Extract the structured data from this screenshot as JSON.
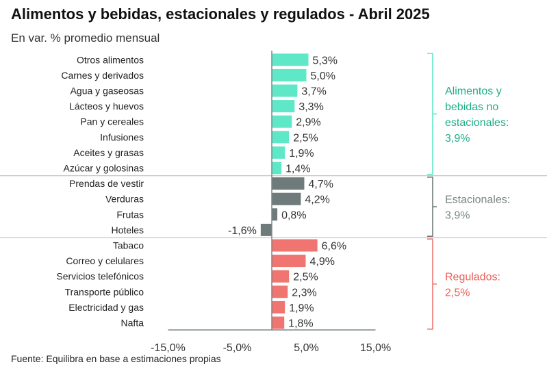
{
  "header": {
    "title": "Alimentos y bebidas, estacionales y regulados - Abril 2025",
    "subtitle": "En var. % promedio mensual"
  },
  "footer": {
    "source": "Fuente: Equilibra en base a estimaciones propias"
  },
  "chart_data": {
    "type": "bar",
    "orientation": "horizontal",
    "title": "Alimentos y bebidas, estacionales y regulados - Abril 2025",
    "subtitle": "En var. % promedio mensual",
    "xlim": [
      -15,
      15
    ],
    "x_ticks": [
      -15,
      -5,
      5,
      15
    ],
    "x_tick_labels": [
      "-15,0%",
      "-5,0%",
      "5,0%",
      "15,0%"
    ],
    "grid": false,
    "categories": [
      "Otros alimentos",
      "Carnes y derivados",
      "Agua y gaseosas",
      "Lácteos y huevos",
      "Pan y cereales",
      "Infusiones",
      "Aceites y grasas",
      "Azúcar y golosinas",
      "Prendas de vestir",
      "Verduras",
      "Frutas",
      "Hoteles",
      "Tabaco",
      "Correo y celulares",
      "Servicios telefónicos",
      "Transporte público",
      "Electricidad y gas",
      "Nafta"
    ],
    "values": [
      5.3,
      5.0,
      3.7,
      3.3,
      2.9,
      2.5,
      1.9,
      1.4,
      4.7,
      4.2,
      0.8,
      -1.6,
      6.6,
      4.9,
      2.5,
      2.3,
      1.9,
      1.8
    ],
    "value_labels": [
      "5,3%",
      "5,0%",
      "3,7%",
      "3,3%",
      "2,9%",
      "2,5%",
      "1,9%",
      "1,4%",
      "4,7%",
      "4,2%",
      "0,8%",
      "-1,6%",
      "6,6%",
      "4,9%",
      "2,5%",
      "2,3%",
      "1,9%",
      "1,8%"
    ],
    "groups": [
      {
        "label_lines": [
          "Alimentos y",
          "bebidas no",
          "estacionales:",
          "3,9%"
        ],
        "start": 0,
        "count": 8,
        "color": "#5ee8c8",
        "text_color": "#1fae88"
      },
      {
        "label_lines": [
          "Estacionales:",
          "3,9%"
        ],
        "start": 8,
        "count": 4,
        "color": "#6f7a7a",
        "text_color": "#7a8585"
      },
      {
        "label_lines": [
          "Regulados:",
          "2,5%"
        ],
        "start": 12,
        "count": 6,
        "color": "#f07470",
        "text_color": "#ea5e5a"
      }
    ]
  }
}
